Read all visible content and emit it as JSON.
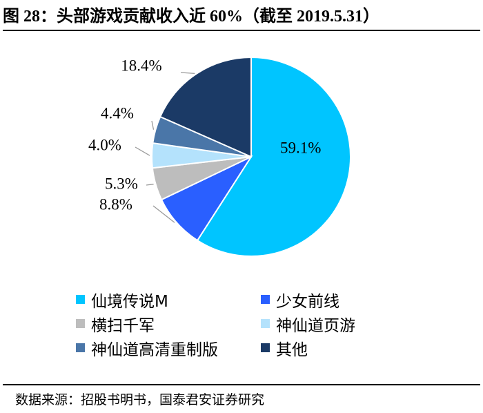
{
  "figure": {
    "title": "图 28：头部游戏贡献收入近 60%（截至 2019.5.31）",
    "source": "数据来源：招股书明书，国泰君安证券研究"
  },
  "chart_data": {
    "type": "pie",
    "slices": [
      {
        "name": "仙境传说M",
        "value": 59.1,
        "label": "59.1%",
        "color": "#00c5ff"
      },
      {
        "name": "少女前线",
        "value": 8.8,
        "label": "8.8%",
        "color": "#2a5fff"
      },
      {
        "name": "横扫千军",
        "value": 5.3,
        "label": "5.3%",
        "color": "#bdbdbd"
      },
      {
        "name": "神仙道页游",
        "value": 4.0,
        "label": "4.0%",
        "color": "#b4e2fc"
      },
      {
        "name": "神仙道高清重制版",
        "value": 4.4,
        "label": "4.4%",
        "color": "#4a76a8"
      },
      {
        "name": "其他",
        "value": 18.4,
        "label": "18.4%",
        "color": "#1b3a66"
      }
    ],
    "legend_position": "bottom"
  }
}
